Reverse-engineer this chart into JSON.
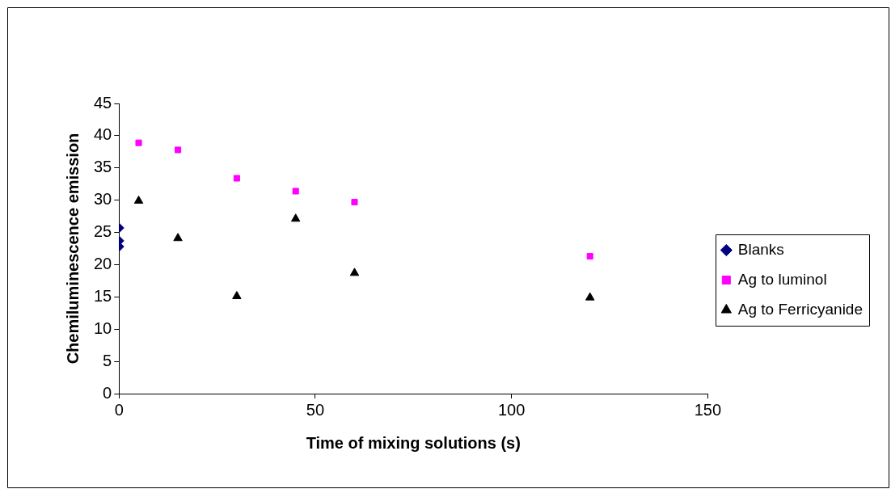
{
  "chart_data": {
    "type": "scatter",
    "xlabel": "Time of mixing solutions (s)",
    "ylabel": "Chemiluminescence emission",
    "xlim": [
      0,
      150
    ],
    "xticks": [
      0,
      50,
      100,
      150
    ],
    "ylim": [
      0,
      45
    ],
    "yticks": [
      0,
      5,
      10,
      15,
      20,
      25,
      30,
      35,
      40,
      45
    ],
    "grid": false,
    "legend": "right",
    "series": [
      {
        "name": "Blanks",
        "color": "#000080",
        "marker": "diamond",
        "x": [
          0,
          0,
          0
        ],
        "values": [
          25.7,
          23.7,
          22.8
        ]
      },
      {
        "name": "Ag to luminol",
        "color": "#ff00ff",
        "marker": "square",
        "x": [
          5,
          15,
          30,
          45,
          60,
          120
        ],
        "values": [
          38.9,
          37.8,
          33.4,
          31.4,
          29.7,
          21.3
        ]
      },
      {
        "name": "Ag to Ferricyanide",
        "color": "#000000",
        "marker": "triangle",
        "x": [
          5,
          15,
          30,
          45,
          60,
          120
        ],
        "values": [
          29.9,
          24.1,
          15.1,
          27.1,
          18.7,
          14.9
        ]
      }
    ]
  }
}
